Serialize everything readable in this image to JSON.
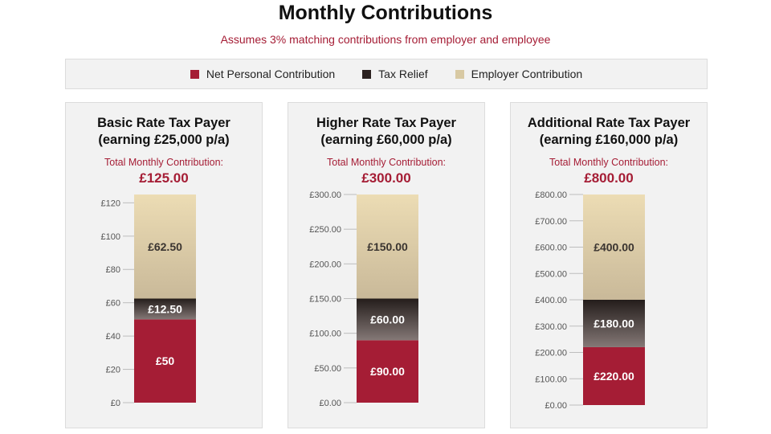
{
  "title": "Monthly Contributions",
  "subtitle": "Assumes 3% matching contributions from employer and employee",
  "colors": {
    "accent": "#a51d35",
    "net": "#a51d35",
    "tax_top": "#241d1b",
    "tax_bottom": "#847876",
    "employer_top": "#ecdcb4",
    "employer_bottom": "#c9b999",
    "axis_text": "#555555"
  },
  "legend": {
    "items": [
      {
        "label": "Net Personal Contribution",
        "color": "#a51d35"
      },
      {
        "label": "Tax Relief",
        "color": "#2b2220"
      },
      {
        "label": "Employer Contribution",
        "color": "#d8c9a3"
      }
    ]
  },
  "panels": [
    {
      "title_line1": "Basic Rate Tax Payer",
      "title_line2": "(earning £25,000 p/a)",
      "total_label": "Total Monthly Contribution:",
      "total_value": "£125.00"
    },
    {
      "title_line1": "Higher Rate Tax Payer",
      "title_line2": "(earning £60,000 p/a)",
      "total_label": "Total Monthly Contribution:",
      "total_value": "£300.00"
    },
    {
      "title_line1": "Additional Rate Tax Payer",
      "title_line2": "(earning £160,000 p/a)",
      "total_label": "Total Monthly Contribution:",
      "total_value": "£800.00"
    }
  ],
  "chart_data": [
    {
      "type": "bar",
      "stacked": true,
      "categories": [
        "Basic Rate Tax Payer"
      ],
      "series": [
        {
          "name": "Net Personal Contribution",
          "values": [
            50
          ],
          "label": "£50"
        },
        {
          "name": "Tax Relief",
          "values": [
            12.5
          ],
          "label": "£12.50"
        },
        {
          "name": "Employer Contribution",
          "values": [
            62.5
          ],
          "label": "£62.50"
        }
      ],
      "ylim": [
        0,
        125
      ],
      "yticks": [
        0,
        20,
        40,
        60,
        80,
        100,
        120
      ],
      "ytick_labels": [
        "£0",
        "£20",
        "£40",
        "£60",
        "£80",
        "£100",
        "£120"
      ]
    },
    {
      "type": "bar",
      "stacked": true,
      "categories": [
        "Higher Rate Tax Payer"
      ],
      "series": [
        {
          "name": "Net Personal Contribution",
          "values": [
            90
          ],
          "label": "£90.00"
        },
        {
          "name": "Tax Relief",
          "values": [
            60
          ],
          "label": "£60.00"
        },
        {
          "name": "Employer Contribution",
          "values": [
            150
          ],
          "label": "£150.00"
        }
      ],
      "ylim": [
        0,
        300
      ],
      "yticks": [
        0,
        50,
        100,
        150,
        200,
        250,
        300
      ],
      "ytick_labels": [
        "£0.00",
        "£50.00",
        "£100.00",
        "£150.00",
        "£200.00",
        "£250.00",
        "£300.00"
      ]
    },
    {
      "type": "bar",
      "stacked": true,
      "categories": [
        "Additional Rate Tax Payer"
      ],
      "series": [
        {
          "name": "Net Personal Contribution",
          "values": [
            220
          ],
          "label": "£220.00"
        },
        {
          "name": "Tax Relief",
          "values": [
            180
          ],
          "label": "£180.00"
        },
        {
          "name": "Employer Contribution",
          "values": [
            400
          ],
          "label": "£400.00"
        }
      ],
      "ylim": [
        0,
        800
      ],
      "yticks": [
        0,
        100,
        200,
        300,
        400,
        500,
        600,
        700,
        800
      ],
      "ytick_labels": [
        "£0.00",
        "£100.00",
        "£200.00",
        "£300.00",
        "£400.00",
        "£500.00",
        "£600.00",
        "£700.00",
        "£800.00"
      ]
    }
  ]
}
